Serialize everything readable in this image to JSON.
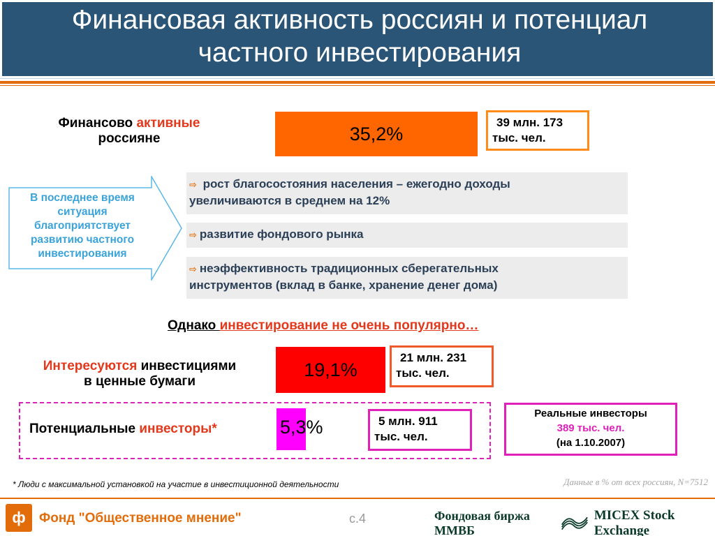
{
  "header": {
    "title_line1": "Финансовая активность россиян и потенциал",
    "title_line2": "частного инвестирования"
  },
  "active": {
    "label_part1": "Финансово ",
    "label_accent": "активные",
    "label_line2": "россияне",
    "percent": "35,2%",
    "count_line1": "39 млн. 173",
    "count_line2": "тыс. чел."
  },
  "callout": {
    "lines": [
      "В последнее время",
      "ситуация",
      "благоприятствует",
      "развитию частного",
      "инвестирования"
    ]
  },
  "reasons": [
    {
      "line1": " рост благосостояния населения – ежегодно доходы",
      "line2": "увеличиваются в среднем на 12%"
    },
    {
      "line1": "развитие фондового рынка",
      "line2": ""
    },
    {
      "line1": "неэффективность традиционных сберегательных",
      "line2": "инструментов (вклад в банке, хранение денег дома)"
    }
  ],
  "however": {
    "part1": "Однако ",
    "part2": "инвестирование не очень популярно…"
  },
  "interested": {
    "label_accent": "Интересуются",
    "label_part2": " инвестициями",
    "label_line2": "в ценные бумаги",
    "percent": "19,1%",
    "count_line1": "21 млн. 231",
    "count_line2": "тыс. чел."
  },
  "potential": {
    "label_part1": "Потенциальные ",
    "label_accent": "инвесторы*",
    "percent": "5,3%",
    "count_line1": "5 млн. 911",
    "count_line2": "тыс. чел."
  },
  "real_investors": {
    "line1": "Реальные инвесторы",
    "line2": "389 тыс. чел.",
    "line3": "(на 1.10.2007)"
  },
  "footnote": "* Люди с максимальной  установкой на участие в инвестиционной деятельности",
  "data_note": "Данные в % от всех  россиян, N=7512",
  "footer": {
    "org": "Фонд \"Общественное мнение\"",
    "page": "с.4",
    "exchange_left": "Фондовая биржа ММВБ",
    "exchange_right": "MICEX Stock Exchange"
  },
  "colors": {
    "header_bg": "#2a5577",
    "orange": "#e36c0a",
    "bar_orange": "#ff6600",
    "bar_red": "#ff0000",
    "bar_magenta": "#ff00ff",
    "accent_red": "#e3381b",
    "callout_blue": "#3aa3d9",
    "pink": "#e020b8"
  }
}
